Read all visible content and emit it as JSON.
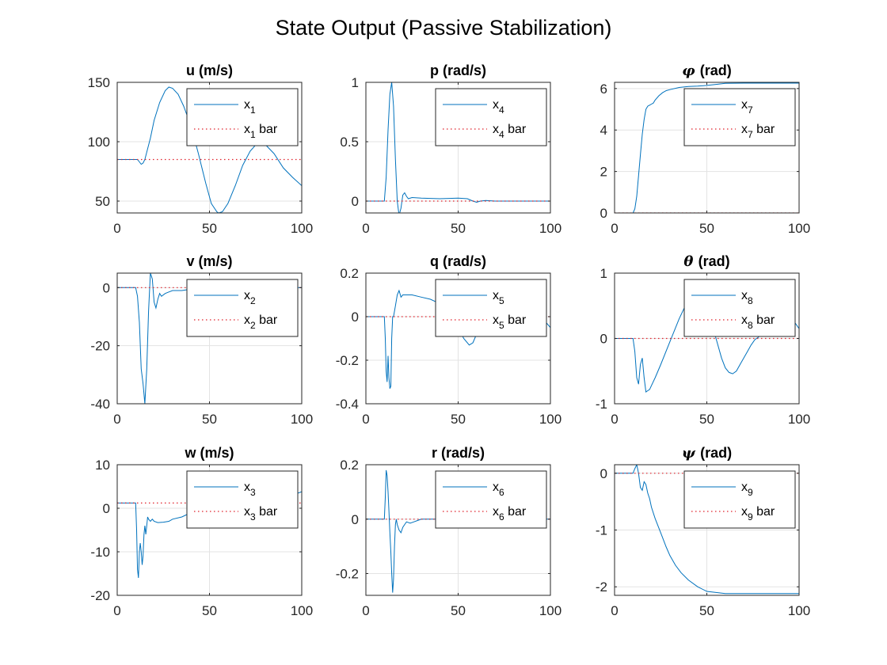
{
  "figure_title": "State Output (Passive Stabilization)",
  "colors": {
    "signal": "#0072BD",
    "reference": "#E0202A",
    "grid": "#E3E3E3",
    "axis": "#262626"
  },
  "chart_data": [
    {
      "type": "line",
      "title": "u (m/s)",
      "title_symbol": "",
      "xlim": [
        0,
        100
      ],
      "ylim": [
        40,
        150
      ],
      "xticks": [
        0,
        50,
        100
      ],
      "yticks": [
        50,
        100,
        150
      ],
      "legend_position": "top-right",
      "grid": true,
      "series": [
        {
          "name": "x",
          "subscript": "1",
          "suffix": "",
          "style": "solid",
          "x": [
            0,
            10,
            11,
            12,
            13,
            14,
            15,
            18,
            20,
            23,
            26,
            28,
            30,
            33,
            36,
            40,
            44,
            48,
            51,
            54,
            55,
            57,
            60,
            64,
            68,
            72,
            76,
            80,
            85,
            90,
            95,
            100
          ],
          "y": [
            85,
            85,
            85,
            83,
            81,
            82,
            85,
            103,
            118,
            133,
            143,
            146,
            145,
            140,
            130,
            113,
            90,
            65,
            48,
            41,
            40,
            41,
            48,
            63,
            80,
            92,
            99,
            98,
            90,
            78,
            70,
            63
          ]
        },
        {
          "name": "x",
          "subscript": "1",
          "suffix": " bar",
          "style": "dotted",
          "x": [
            0,
            100
          ],
          "y": [
            85,
            85
          ]
        }
      ]
    },
    {
      "type": "line",
      "title": "p (rad/s)",
      "title_symbol": "",
      "xlim": [
        0,
        100
      ],
      "ylim": [
        -0.1,
        1
      ],
      "xticks": [
        0,
        50,
        100
      ],
      "yticks": [
        0,
        0.5,
        1
      ],
      "legend_position": "top-right",
      "grid": true,
      "series": [
        {
          "name": "x",
          "subscript": "4",
          "suffix": "",
          "style": "solid",
          "x": [
            0,
            10,
            11,
            12,
            13,
            14,
            15,
            16,
            17,
            18,
            19,
            20,
            21,
            22,
            23,
            25,
            30,
            40,
            50,
            55,
            58,
            60,
            62,
            65,
            70,
            80,
            90,
            100
          ],
          "y": [
            0,
            0,
            0.2,
            0.6,
            0.9,
            1.0,
            0.8,
            0.35,
            0.0,
            -0.12,
            -0.06,
            0.05,
            0.07,
            0.04,
            0.02,
            0.03,
            0.025,
            0.02,
            0.025,
            0.02,
            0.0,
            -0.01,
            0.0,
            0.005,
            0.0,
            0.0,
            0.0,
            0.0
          ]
        },
        {
          "name": "x",
          "subscript": "4",
          "suffix": " bar",
          "style": "dotted",
          "x": [
            0,
            100
          ],
          "y": [
            0,
            0
          ]
        }
      ]
    },
    {
      "type": "line",
      "title": "(rad)",
      "title_symbol": "φ",
      "xlim": [
        0,
        100
      ],
      "ylim": [
        0,
        6.3
      ],
      "xticks": [
        0,
        50,
        100
      ],
      "yticks": [
        0,
        2,
        4,
        6
      ],
      "legend_position": "top-right",
      "grid": true,
      "series": [
        {
          "name": "x",
          "subscript": "7",
          "suffix": "",
          "style": "solid",
          "x": [
            0,
            10,
            11,
            12,
            13,
            14,
            15,
            16,
            17,
            18,
            19,
            20,
            21,
            22,
            24,
            26,
            28,
            30,
            35,
            40,
            45,
            50,
            55,
            60,
            70,
            80,
            90,
            100
          ],
          "y": [
            0,
            0,
            0.2,
            0.8,
            1.8,
            2.8,
            3.8,
            4.5,
            5.0,
            5.15,
            5.2,
            5.25,
            5.3,
            5.45,
            5.65,
            5.8,
            5.9,
            5.95,
            6.05,
            6.1,
            6.12,
            6.15,
            6.2,
            6.25,
            6.26,
            6.26,
            6.26,
            6.26
          ]
        },
        {
          "name": "x",
          "subscript": "7",
          "suffix": " bar",
          "style": "dotted",
          "x": [
            0,
            100
          ],
          "y": [
            0,
            0
          ]
        }
      ]
    },
    {
      "type": "line",
      "title": "v (m/s)",
      "title_symbol": "",
      "xlim": [
        0,
        100
      ],
      "ylim": [
        -40,
        5
      ],
      "xticks": [
        0,
        50,
        100
      ],
      "yticks": [
        -40,
        -20,
        0
      ],
      "legend_position": "top-right",
      "grid": true,
      "series": [
        {
          "name": "x",
          "subscript": "2",
          "suffix": "",
          "style": "solid",
          "x": [
            0,
            10,
            11,
            12,
            13,
            14,
            15,
            16,
            17,
            18,
            19,
            20,
            21,
            22,
            23,
            24,
            26,
            28,
            30,
            35,
            40,
            50,
            60,
            70,
            80,
            90,
            100
          ],
          "y": [
            0,
            0,
            -3,
            -12,
            -28,
            -33,
            -40,
            -28,
            -8,
            5,
            3,
            -5,
            -7,
            -4,
            -2,
            -3,
            -2,
            -1.5,
            -1,
            -1,
            -0.5,
            0,
            0,
            0,
            0,
            0,
            0
          ]
        },
        {
          "name": "x",
          "subscript": "2",
          "suffix": " bar",
          "style": "dotted",
          "x": [
            0,
            100
          ],
          "y": [
            0,
            0
          ]
        }
      ]
    },
    {
      "type": "line",
      "title": "q (rad/s)",
      "title_symbol": "",
      "xlim": [
        0,
        100
      ],
      "ylim": [
        -0.4,
        0.2
      ],
      "xticks": [
        0,
        50,
        100
      ],
      "yticks": [
        -0.4,
        -0.2,
        0,
        0.2
      ],
      "legend_position": "top-right",
      "grid": true,
      "series": [
        {
          "name": "x",
          "subscript": "5",
          "suffix": "",
          "style": "solid",
          "x": [
            0,
            10,
            10.5,
            11,
            11.5,
            12,
            12.5,
            13,
            13.5,
            14,
            14.5,
            15,
            16,
            17,
            18,
            19,
            20,
            22,
            25,
            30,
            35,
            40,
            45,
            50,
            53,
            56,
            58,
            60,
            65,
            70,
            80,
            90,
            95,
            100
          ],
          "y": [
            0,
            0,
            -0.1,
            -0.25,
            -0.3,
            -0.18,
            -0.28,
            -0.33,
            -0.32,
            -0.1,
            0.0,
            0.0,
            0.05,
            0.1,
            0.12,
            0.09,
            0.1,
            0.1,
            0.1,
            0.09,
            0.08,
            0.06,
            0.02,
            -0.05,
            -0.1,
            -0.13,
            -0.12,
            -0.08,
            0.0,
            0.05,
            0.05,
            0.03,
            0.0,
            -0.05
          ]
        },
        {
          "name": "x",
          "subscript": "5",
          "suffix": " bar",
          "style": "dotted",
          "x": [
            0,
            100
          ],
          "y": [
            0,
            0
          ]
        }
      ]
    },
    {
      "type": "line",
      "title": "(rad)",
      "title_symbol": "θ",
      "xlim": [
        0,
        100
      ],
      "ylim": [
        -1,
        1
      ],
      "xticks": [
        0,
        50,
        100
      ],
      "yticks": [
        -1,
        0,
        1
      ],
      "legend_position": "top-right",
      "grid": true,
      "series": [
        {
          "name": "x",
          "subscript": "8",
          "suffix": "",
          "style": "solid",
          "x": [
            0,
            10,
            11,
            12,
            13,
            14,
            15,
            16,
            17,
            18,
            19,
            20,
            22,
            25,
            30,
            35,
            40,
            45,
            50,
            55,
            58,
            60,
            62,
            64,
            66,
            68,
            70,
            72,
            74,
            76,
            78,
            80,
            85,
            90,
            95,
            100
          ],
          "y": [
            0,
            0,
            -0.2,
            -0.6,
            -0.7,
            -0.4,
            -0.3,
            -0.6,
            -0.82,
            -0.8,
            -0.78,
            -0.72,
            -0.6,
            -0.4,
            -0.05,
            0.3,
            0.6,
            0.75,
            0.5,
            0.0,
            -0.3,
            -0.45,
            -0.52,
            -0.54,
            -0.5,
            -0.4,
            -0.3,
            -0.2,
            -0.1,
            -0.02,
            0.02,
            0.1,
            0.3,
            0.45,
            0.35,
            0.15
          ]
        },
        {
          "name": "x",
          "subscript": "8",
          "suffix": " bar",
          "style": "dotted",
          "x": [
            0,
            100
          ],
          "y": [
            0,
            0
          ]
        }
      ]
    },
    {
      "type": "line",
      "title": "w (m/s)",
      "title_symbol": "",
      "xlim": [
        0,
        100
      ],
      "ylim": [
        -20,
        10
      ],
      "xticks": [
        0,
        50,
        100
      ],
      "yticks": [
        -20,
        -10,
        0,
        10
      ],
      "legend_position": "top-right",
      "grid": true,
      "series": [
        {
          "name": "x",
          "subscript": "3",
          "suffix": "",
          "style": "solid",
          "x": [
            0,
            10,
            10.5,
            11,
            11.5,
            12,
            12.5,
            13,
            13.5,
            14,
            14.5,
            15,
            15.5,
            16,
            16.5,
            17,
            18,
            19,
            20,
            22,
            25,
            28,
            30,
            35,
            40,
            45,
            50,
            55,
            60,
            70,
            80,
            90,
            95,
            100
          ],
          "y": [
            1.2,
            1.2,
            -5,
            -14,
            -16,
            -10,
            -8,
            -10,
            -13,
            -11,
            -6,
            -4,
            -6,
            -4,
            -2,
            -2.5,
            -3,
            -2.5,
            -3,
            -3.3,
            -3.2,
            -3,
            -2.5,
            -2,
            -1,
            0.2,
            1.3,
            2.5,
            3.5,
            4.5,
            4.2,
            3.5,
            3.0,
            3.8
          ]
        },
        {
          "name": "x",
          "subscript": "3",
          "suffix": " bar",
          "style": "dotted",
          "x": [
            0,
            100
          ],
          "y": [
            1.2,
            1.2
          ]
        }
      ]
    },
    {
      "type": "line",
      "title": "r (rad/s)",
      "title_symbol": "",
      "xlim": [
        0,
        100
      ],
      "ylim": [
        -0.28,
        0.2
      ],
      "xticks": [
        0,
        50,
        100
      ],
      "yticks": [
        -0.2,
        0,
        0.2
      ],
      "legend_position": "top-right",
      "grid": true,
      "series": [
        {
          "name": "x",
          "subscript": "6",
          "suffix": "",
          "style": "solid",
          "x": [
            0,
            10,
            10.5,
            11,
            11.5,
            12,
            12.5,
            13,
            13.5,
            14,
            14.5,
            15,
            15.5,
            16,
            16.5,
            17,
            18,
            19,
            20,
            21,
            22,
            24,
            26,
            28,
            30,
            35,
            40,
            50,
            60,
            70,
            80,
            90,
            100
          ],
          "y": [
            0,
            0,
            0.08,
            0.18,
            0.16,
            0.1,
            0.03,
            -0.05,
            -0.12,
            -0.2,
            -0.27,
            -0.22,
            -0.1,
            -0.02,
            0.0,
            -0.02,
            -0.04,
            -0.05,
            -0.03,
            -0.02,
            -0.01,
            -0.015,
            -0.01,
            -0.005,
            0.0,
            0.0,
            0.0,
            0.0,
            0.0,
            0.0,
            0.0,
            0.0,
            0.0
          ]
        },
        {
          "name": "x",
          "subscript": "6",
          "suffix": " bar",
          "style": "dotted",
          "x": [
            0,
            100
          ],
          "y": [
            0,
            0
          ]
        }
      ]
    },
    {
      "type": "line",
      "title": "(rad)",
      "title_symbol": "ψ",
      "xlim": [
        0,
        100
      ],
      "ylim": [
        -2.15,
        0.15
      ],
      "xticks": [
        0,
        50,
        100
      ],
      "yticks": [
        -2,
        -1,
        0
      ],
      "legend_position": "top-right",
      "grid": true,
      "series": [
        {
          "name": "x",
          "subscript": "9",
          "suffix": "",
          "style": "solid",
          "x": [
            0,
            10,
            11,
            12,
            13,
            14,
            15,
            16,
            17,
            18,
            19,
            20,
            22,
            25,
            28,
            30,
            33,
            36,
            40,
            45,
            50,
            55,
            60,
            70,
            80,
            90,
            100
          ],
          "y": [
            0,
            0,
            0.08,
            0.15,
            0.0,
            -0.25,
            -0.3,
            -0.15,
            -0.2,
            -0.35,
            -0.45,
            -0.6,
            -0.8,
            -1.05,
            -1.3,
            -1.45,
            -1.62,
            -1.75,
            -1.88,
            -2.0,
            -2.08,
            -2.1,
            -2.12,
            -2.12,
            -2.12,
            -2.12,
            -2.12
          ]
        },
        {
          "name": "x",
          "subscript": "9",
          "suffix": " bar",
          "style": "dotted",
          "x": [
            0,
            100
          ],
          "y": [
            0,
            0
          ]
        }
      ]
    }
  ]
}
